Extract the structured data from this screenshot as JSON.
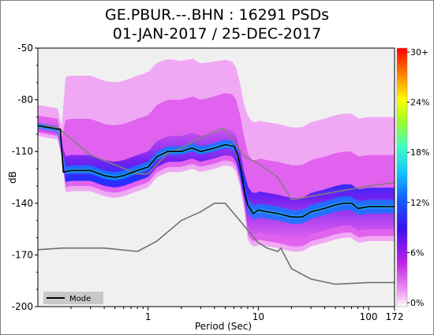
{
  "title_line1": "GE.PBUR.--.BHN : 16291 PSDs",
  "title_line2": "01-JAN-2017 / 25-DEC-2017",
  "chart_data": {
    "type": "heatmap",
    "xlabel": "Period (Sec)",
    "ylabel": "dB",
    "x_scale": "log",
    "xlim": [
      0.1,
      172
    ],
    "ylim": [
      -200,
      -50
    ],
    "x_ticks": [
      "1",
      "10",
      "100",
      "172"
    ],
    "y_ticks": [
      "-50",
      "-80",
      "-110",
      "-140",
      "-170",
      "-200"
    ],
    "colorbar_ticks": [
      "30+",
      "24%",
      "18%",
      "12%",
      "6%",
      "0%"
    ],
    "legend": {
      "label": "Mode",
      "position": "bottom-left",
      "color": "#000000"
    },
    "series": [
      {
        "name": "Mode",
        "x": [
          0.1,
          0.15,
          0.16,
          0.17,
          0.2,
          0.3,
          0.4,
          0.5,
          0.6,
          0.8,
          1.0,
          1.2,
          1.5,
          2.0,
          2.5,
          3.0,
          4.0,
          5.0,
          6.0,
          6.5,
          7.0,
          7.5,
          8.0,
          9.0,
          10,
          12,
          15,
          20,
          25,
          30,
          40,
          50,
          60,
          70,
          80,
          100,
          120,
          172
        ],
        "y": [
          -95,
          -97,
          -97,
          -122,
          -121,
          -121,
          -124,
          -125,
          -124,
          -121,
          -119,
          -113,
          -110,
          -110,
          -108,
          -110,
          -108,
          -106,
          -107,
          -112,
          -122,
          -133,
          -141,
          -146,
          -144,
          -145,
          -146,
          -148,
          -148,
          -145,
          -143,
          -141,
          -140,
          -140,
          -143,
          -142,
          -142,
          -142
        ]
      },
      {
        "name": "NHNM",
        "x": [
          0.1,
          0.15,
          0.3,
          0.8,
          1.0,
          1.5,
          2.0,
          3.0,
          4.5,
          5.0,
          7.5,
          10,
          15,
          20,
          100,
          172
        ],
        "y": [
          -95,
          -96,
          -112,
          -123,
          -123,
          -111,
          -108,
          -102,
          -97,
          -97,
          -113,
          -117,
          -125,
          -138,
          -130,
          -128
        ]
      },
      {
        "name": "NLNM",
        "x": [
          0.1,
          0.17,
          0.4,
          0.8,
          1.2,
          2.0,
          3.0,
          4.0,
          5.0,
          6.0,
          10,
          12,
          15,
          16,
          20,
          30,
          50,
          100,
          172
        ],
        "y": [
          -167,
          -166,
          -166,
          -168,
          -162,
          -150,
          -145,
          -140,
          -140,
          -146,
          -163,
          -166,
          -168,
          -166,
          -178,
          -184,
          -187,
          -186,
          -186
        ]
      }
    ]
  },
  "colors": {
    "plot_background": "#f0f0f0",
    "density_low": "#e84fe8",
    "density_mid": "#3050ff",
    "mode_line": "#000000",
    "noise_models": "#808080"
  }
}
